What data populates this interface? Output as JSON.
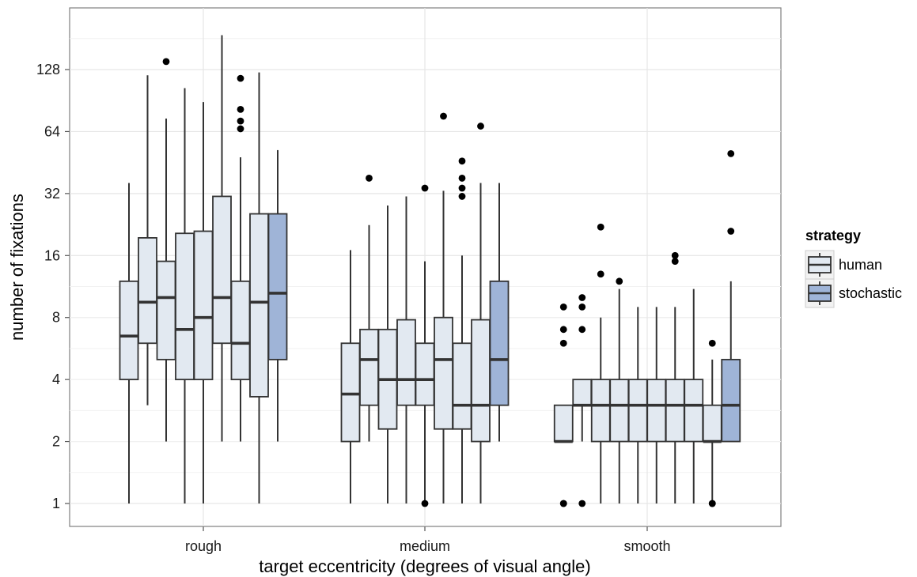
{
  "chart_data": {
    "type": "box",
    "xlabel": "target eccentricity (degrees of visual angle)",
    "ylabel": "number of fixations",
    "yscale": "log2",
    "ylim": [
      0.82,
      250
    ],
    "y_ticks": [
      1,
      2,
      4,
      8,
      16,
      32,
      64,
      128
    ],
    "y_tick_labels": [
      "1",
      "2",
      "4",
      "8",
      "16",
      "32",
      "64",
      "128"
    ],
    "categories": [
      "rough",
      "medium",
      "smooth"
    ],
    "grid": true,
    "legend": {
      "title": "strategy",
      "position": "right",
      "entries": [
        {
          "name": "human",
          "color": "#e2e9f1"
        },
        {
          "name": "stochastic",
          "color": "#9fb4d7"
        }
      ]
    },
    "groups": [
      {
        "category": "rough",
        "boxes": [
          {
            "strategy": "human",
            "whisker_low": 1,
            "q1": 4,
            "median": 6.5,
            "q3": 12,
            "whisker_high": 36,
            "outliers": []
          },
          {
            "strategy": "human",
            "whisker_low": 3,
            "q1": 6,
            "median": 9.5,
            "q3": 19.5,
            "whisker_high": 120,
            "outliers": []
          },
          {
            "strategy": "human",
            "whisker_low": 2,
            "q1": 5,
            "median": 10,
            "q3": 15,
            "whisker_high": 74,
            "outliers": [
              140
            ]
          },
          {
            "strategy": "human",
            "whisker_low": 1,
            "q1": 4,
            "median": 7,
            "q3": 20.5,
            "whisker_high": 104,
            "outliers": []
          },
          {
            "strategy": "human",
            "whisker_low": 1,
            "q1": 4,
            "median": 8,
            "q3": 21,
            "whisker_high": 89,
            "outliers": []
          },
          {
            "strategy": "human",
            "whisker_low": 2,
            "q1": 6,
            "median": 10,
            "q3": 31,
            "whisker_high": 188,
            "outliers": []
          },
          {
            "strategy": "human",
            "whisker_low": 2,
            "q1": 4,
            "median": 6,
            "q3": 12,
            "whisker_high": 48,
            "outliers": [
              66,
              72,
              82,
              116
            ]
          },
          {
            "strategy": "human",
            "whisker_low": 1,
            "q1": 3.3,
            "median": 9.5,
            "q3": 25.5,
            "whisker_high": 124,
            "outliers": []
          },
          {
            "strategy": "stochastic",
            "whisker_low": 2,
            "q1": 5,
            "median": 10.5,
            "q3": 25.5,
            "whisker_high": 52,
            "outliers": []
          }
        ]
      },
      {
        "category": "medium",
        "boxes": [
          {
            "strategy": "human",
            "whisker_low": 1,
            "q1": 2,
            "median": 3.4,
            "q3": 6,
            "whisker_high": 17,
            "outliers": []
          },
          {
            "strategy": "human",
            "whisker_low": 2,
            "q1": 3,
            "median": 5,
            "q3": 7,
            "whisker_high": 22.5,
            "outliers": [
              38
            ]
          },
          {
            "strategy": "human",
            "whisker_low": 1,
            "q1": 2.3,
            "median": 4,
            "q3": 7,
            "whisker_high": 28,
            "outliers": []
          },
          {
            "strategy": "human",
            "whisker_low": 1,
            "q1": 3,
            "median": 4,
            "q3": 7.8,
            "whisker_high": 31,
            "outliers": []
          },
          {
            "strategy": "human",
            "whisker_low": 1,
            "q1": 3,
            "median": 4,
            "q3": 6,
            "whisker_high": 15,
            "outliers": [
              1,
              34
            ]
          },
          {
            "strategy": "human",
            "whisker_low": 1,
            "q1": 2.3,
            "median": 5,
            "q3": 8,
            "whisker_high": 33,
            "outliers": [
              76
            ]
          },
          {
            "strategy": "human",
            "whisker_low": 1,
            "q1": 2.3,
            "median": 3,
            "q3": 6,
            "whisker_high": 16,
            "outliers": [
              31,
              34,
              38,
              46
            ]
          },
          {
            "strategy": "human",
            "whisker_low": 1,
            "q1": 2,
            "median": 3,
            "q3": 7.8,
            "whisker_high": 36,
            "outliers": [
              68
            ]
          },
          {
            "strategy": "stochastic",
            "whisker_low": 2,
            "q1": 3,
            "median": 5,
            "q3": 12,
            "whisker_high": 36,
            "outliers": []
          }
        ]
      },
      {
        "category": "smooth",
        "boxes": [
          {
            "strategy": "human",
            "whisker_low": 2,
            "q1": 2,
            "median": 2,
            "q3": 3,
            "whisker_high": 3,
            "outliers": [
              1,
              1,
              6,
              7,
              9
            ]
          },
          {
            "strategy": "human",
            "whisker_low": 2,
            "q1": 3,
            "median": 3,
            "q3": 4,
            "whisker_high": 4,
            "outliers": [
              1,
              7,
              9,
              10
            ]
          },
          {
            "strategy": "human",
            "whisker_low": 1,
            "q1": 2,
            "median": 3,
            "q3": 4,
            "whisker_high": 8,
            "outliers": [
              13,
              22
            ]
          },
          {
            "strategy": "human",
            "whisker_low": 1,
            "q1": 2,
            "median": 3,
            "q3": 4,
            "whisker_high": 11,
            "outliers": [
              12
            ]
          },
          {
            "strategy": "human",
            "whisker_low": 1,
            "q1": 2,
            "median": 3,
            "q3": 4,
            "whisker_high": 9,
            "outliers": []
          },
          {
            "strategy": "human",
            "whisker_low": 1,
            "q1": 2,
            "median": 3,
            "q3": 4,
            "whisker_high": 9,
            "outliers": []
          },
          {
            "strategy": "human",
            "whisker_low": 1,
            "q1": 2,
            "median": 3,
            "q3": 4,
            "whisker_high": 9,
            "outliers": [
              15,
              16
            ]
          },
          {
            "strategy": "human",
            "whisker_low": 1,
            "q1": 2,
            "median": 3,
            "q3": 4,
            "whisker_high": 11,
            "outliers": []
          },
          {
            "strategy": "human",
            "whisker_low": 1,
            "q1": 2,
            "median": 2,
            "q3": 3,
            "whisker_high": 5,
            "outliers": [
              1,
              1,
              6
            ]
          },
          {
            "strategy": "stochastic",
            "whisker_low": 2,
            "q1": 2,
            "median": 3,
            "q3": 5,
            "whisker_high": 12,
            "outliers": [
              21,
              50
            ]
          }
        ]
      }
    ]
  }
}
